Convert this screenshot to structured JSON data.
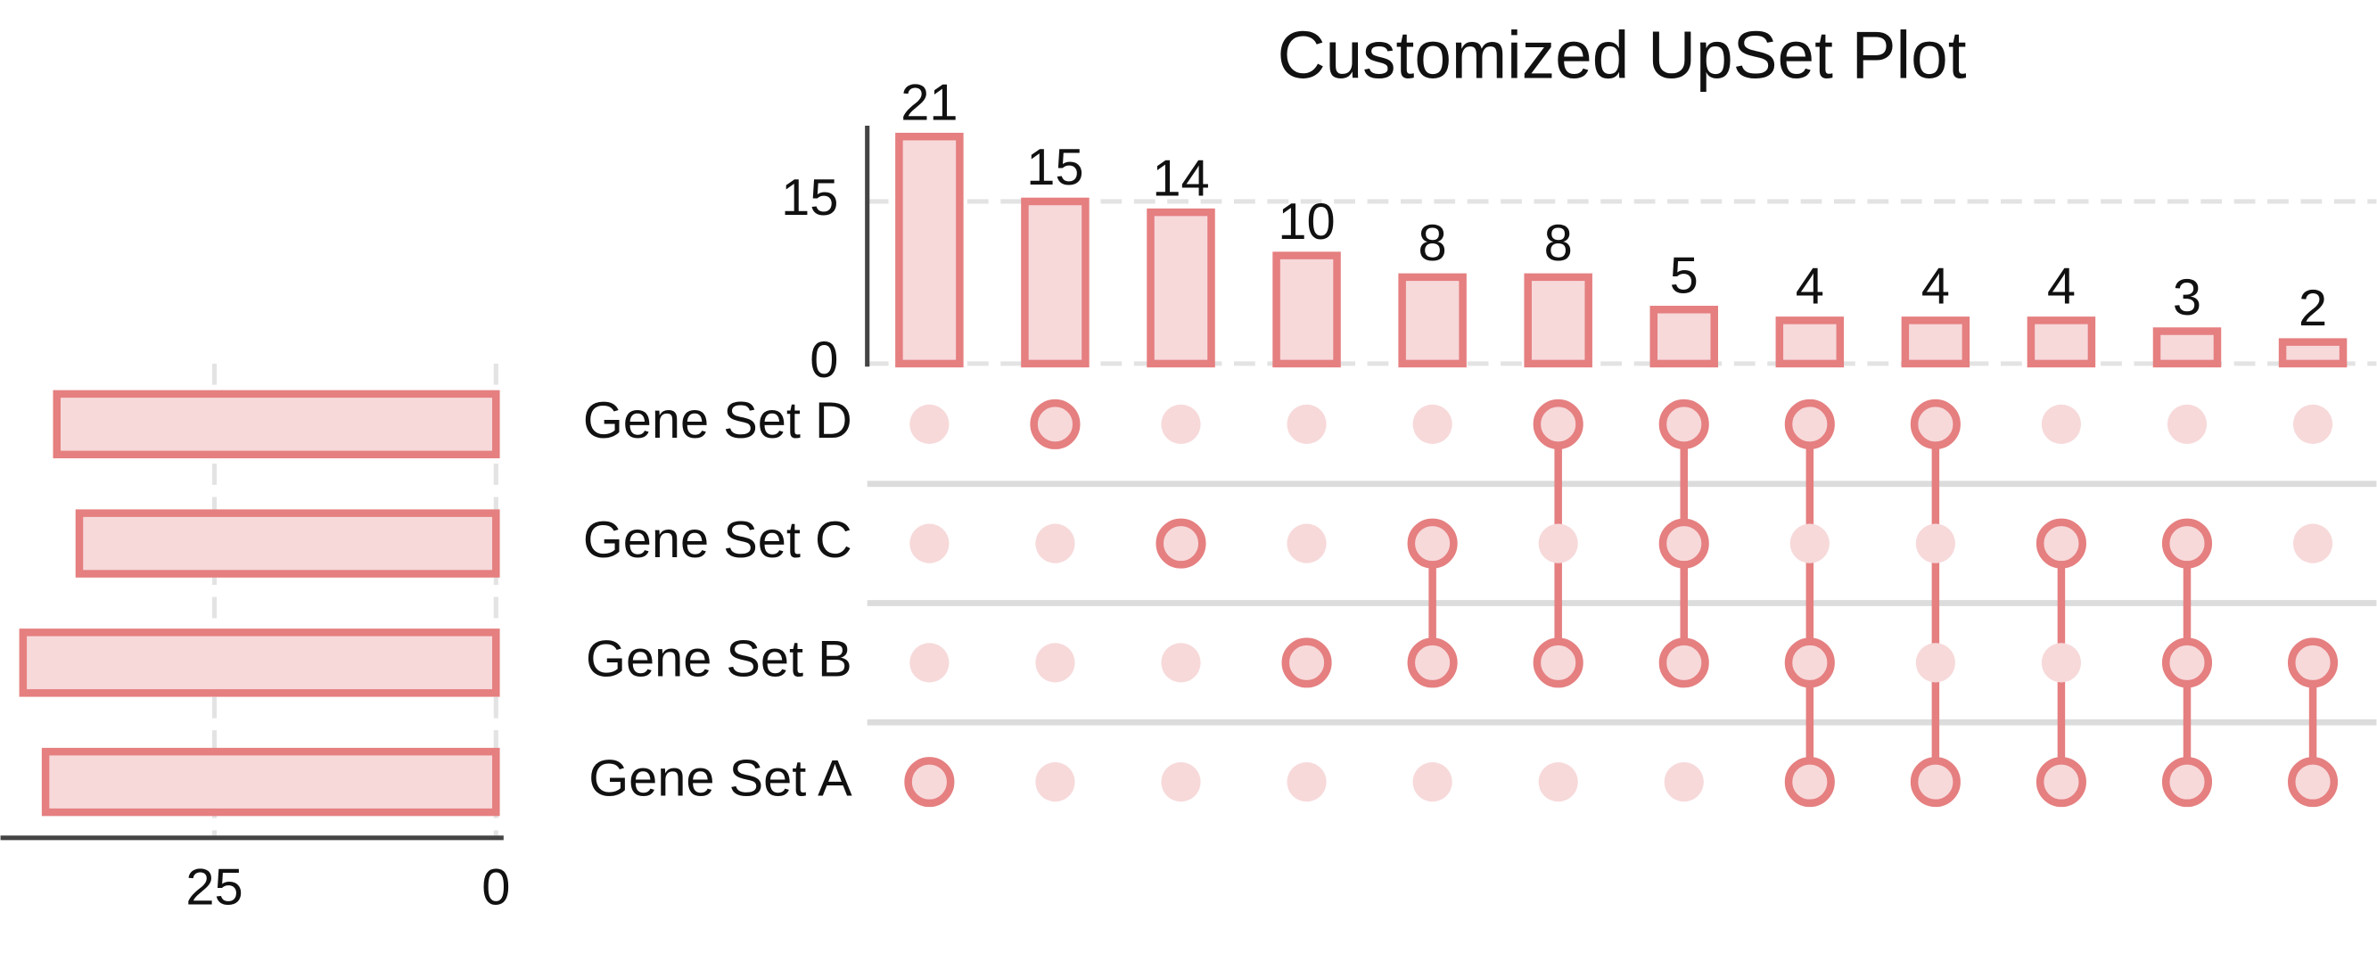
{
  "chart_data": {
    "type": "upset",
    "title": "Customized UpSet Plot",
    "color": "#e57f80",
    "fill": "#f7d9da",
    "grid": true,
    "sets": [
      "Gene Set D",
      "Gene Set C",
      "Gene Set B",
      "Gene Set A"
    ],
    "set_sizes": {
      "values": [
        39,
        37,
        42,
        40
      ],
      "xlim": [
        44,
        0
      ],
      "xticks": [
        25,
        0
      ]
    },
    "intersections": {
      "values": [
        21,
        15,
        14,
        10,
        8,
        8,
        5,
        4,
        4,
        4,
        3,
        2
      ],
      "members": [
        [
          "Gene Set A"
        ],
        [
          "Gene Set D"
        ],
        [
          "Gene Set C"
        ],
        [
          "Gene Set B"
        ],
        [
          "Gene Set C",
          "Gene Set B"
        ],
        [
          "Gene Set D",
          "Gene Set B"
        ],
        [
          "Gene Set D",
          "Gene Set C",
          "Gene Set B"
        ],
        [
          "Gene Set D",
          "Gene Set B",
          "Gene Set A"
        ],
        [
          "Gene Set D",
          "Gene Set A"
        ],
        [
          "Gene Set C",
          "Gene Set A"
        ],
        [
          "Gene Set C",
          "Gene Set B",
          "Gene Set A"
        ],
        [
          "Gene Set B",
          "Gene Set A"
        ]
      ],
      "ylim": [
        0,
        22
      ],
      "yticks": [
        0,
        15
      ]
    }
  }
}
